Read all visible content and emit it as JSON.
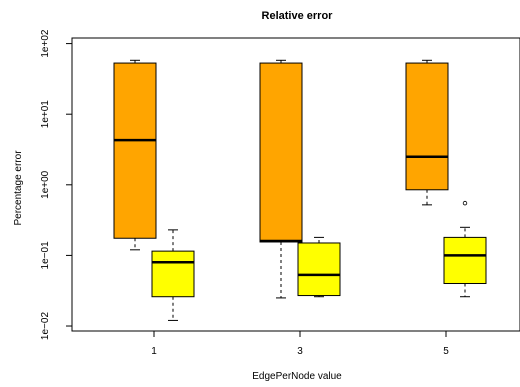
{
  "chart_data": {
    "type": "boxplot",
    "title": "Relative error",
    "xlabel": "EdgePerNode value",
    "ylabel": "Percentage error",
    "y_scale": "log10",
    "ylim": [
      0.0085,
      120
    ],
    "y_ticks": [
      {
        "value": 0.01,
        "label": "1e−02"
      },
      {
        "value": 0.1,
        "label": "1e−01"
      },
      {
        "value": 1,
        "label": "1e+00"
      },
      {
        "value": 10,
        "label": "1e+01"
      },
      {
        "value": 100,
        "label": "1e+02"
      }
    ],
    "groups": [
      {
        "label": "1",
        "boxes": [
          {
            "color": "#FFA500",
            "whisker_low": 0.12,
            "q1": 0.175,
            "median": 4.3,
            "q3": 53,
            "whisker_high": 58,
            "outliers": []
          },
          {
            "color": "#FFFF00",
            "whisker_low": 0.012,
            "q1": 0.026,
            "median": 0.08,
            "q3": 0.115,
            "whisker_high": 0.23,
            "outliers": []
          }
        ]
      },
      {
        "label": "3",
        "boxes": [
          {
            "color": "#FFA500",
            "whisker_low": 0.025,
            "q1": 0.155,
            "median": 0.16,
            "q3": 53,
            "whisker_high": 58,
            "outliers": []
          },
          {
            "color": "#FFFF00",
            "whisker_low": 0.026,
            "q1": 0.027,
            "median": 0.053,
            "q3": 0.15,
            "whisker_high": 0.18,
            "outliers": []
          }
        ]
      },
      {
        "label": "5",
        "boxes": [
          {
            "color": "#FFA500",
            "whisker_low": 0.52,
            "q1": 0.85,
            "median": 2.5,
            "q3": 53,
            "whisker_high": 58,
            "outliers": []
          },
          {
            "color": "#FFFF00",
            "whisker_low": 0.026,
            "q1": 0.04,
            "median": 0.1,
            "q3": 0.18,
            "whisker_high": 0.25,
            "outliers": [
              0.55
            ]
          }
        ]
      }
    ]
  }
}
